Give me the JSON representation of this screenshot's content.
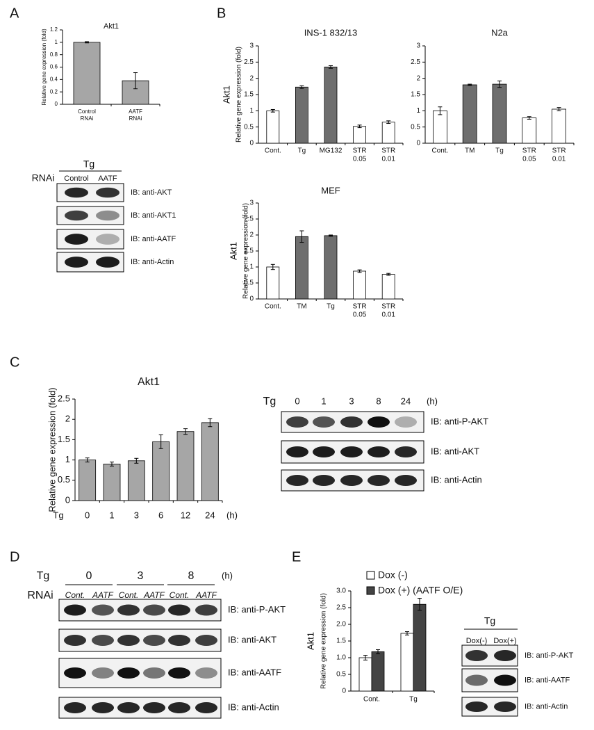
{
  "panel_labels": [
    "A",
    "B",
    "C",
    "D",
    "E"
  ],
  "chart_data": [
    {
      "type": "bar",
      "title": "Akt1",
      "ylabel": [
        "Relative gene expression (fold)"
      ],
      "categories": [
        [
          "Control",
          "RNAi"
        ],
        [
          "AATF",
          "RNAi"
        ]
      ],
      "values": [
        1.0,
        0.38
      ],
      "errors": [
        0.01,
        0.13
      ],
      "colors": [
        "#a6a6a6",
        "#a6a6a6"
      ],
      "ylim": [
        0,
        1.2
      ],
      "yticks": [
        0,
        0.2,
        0.4,
        0.6,
        0.8,
        1,
        1.2
      ]
    },
    {
      "type": "bar",
      "title": "INS-1 832/13",
      "ylabel": [
        "Akt1",
        "Relative gene expression (fold)"
      ],
      "categories": [
        [
          "Cont."
        ],
        [
          "Tg"
        ],
        [
          "MG132"
        ],
        [
          "STR",
          "0.05"
        ],
        [
          "STR",
          "0.01"
        ]
      ],
      "values": [
        1.0,
        1.73,
        2.35,
        0.52,
        0.65
      ],
      "errors": [
        0.04,
        0.04,
        0.04,
        0.04,
        0.04
      ],
      "colors": [
        "#ffffff",
        "#6e6e6e",
        "#6e6e6e",
        "#ffffff",
        "#ffffff"
      ],
      "ylim": [
        0,
        3
      ],
      "yticks": [
        0,
        0.5,
        1,
        1.5,
        2,
        2.5,
        3
      ]
    },
    {
      "type": "bar",
      "title": "N2a",
      "categories": [
        [
          "Cont."
        ],
        [
          "TM"
        ],
        [
          "Tg"
        ],
        [
          "STR",
          "0.05"
        ],
        [
          "STR",
          "0.01"
        ]
      ],
      "values": [
        1.0,
        1.8,
        1.82,
        0.78,
        1.05
      ],
      "errors": [
        0.12,
        0.02,
        0.1,
        0.04,
        0.05
      ],
      "colors": [
        "#ffffff",
        "#6e6e6e",
        "#6e6e6e",
        "#ffffff",
        "#ffffff"
      ],
      "ylim": [
        0,
        3
      ],
      "yticks": [
        0,
        0.5,
        1,
        1.5,
        2,
        2.5,
        3
      ]
    },
    {
      "type": "bar",
      "title": "MEF",
      "ylabel": [
        "Akt1",
        "Relative gene expression (fold)"
      ],
      "categories": [
        [
          "Cont."
        ],
        [
          "TM"
        ],
        [
          "Tg"
        ],
        [
          "STR",
          "0.05"
        ],
        [
          "STR",
          "0.01"
        ]
      ],
      "values": [
        1.0,
        1.95,
        1.98,
        0.87,
        0.77
      ],
      "errors": [
        0.08,
        0.18,
        0.02,
        0.04,
        0.03
      ],
      "colors": [
        "#ffffff",
        "#6e6e6e",
        "#6e6e6e",
        "#ffffff",
        "#ffffff"
      ],
      "ylim": [
        0,
        3
      ],
      "yticks": [
        0,
        0.5,
        1,
        1.5,
        2,
        2.5,
        3
      ]
    },
    {
      "type": "bar",
      "title": "Akt1",
      "ylabel": [
        "Relative gene expression (fold)"
      ],
      "x_prefix": "Tg",
      "x_unit": "(h)",
      "categories": [
        [
          "0"
        ],
        [
          "1"
        ],
        [
          "3"
        ],
        [
          "6"
        ],
        [
          "12"
        ],
        [
          "24"
        ]
      ],
      "values": [
        1.0,
        0.9,
        0.98,
        1.45,
        1.7,
        1.92
      ],
      "errors": [
        0.05,
        0.05,
        0.06,
        0.17,
        0.07,
        0.1
      ],
      "colors": [
        "#a6a6a6",
        "#a6a6a6",
        "#a6a6a6",
        "#a6a6a6",
        "#a6a6a6",
        "#a6a6a6"
      ],
      "ylim": [
        0,
        2.5
      ],
      "yticks": [
        0,
        0.5,
        1,
        1.5,
        2,
        2.5
      ]
    },
    {
      "type": "grouped_bar",
      "ylabel": [
        "Akt1",
        "Relative gene expression (fold)"
      ],
      "categories": [
        [
          "Cont."
        ],
        [
          "Tg"
        ]
      ],
      "series": [
        {
          "name": "Dox (-)",
          "color": "#ffffff",
          "values": [
            1.0,
            1.73
          ],
          "errors": [
            0.07,
            0.05
          ]
        },
        {
          "name": "Dox (+) (AATF O/E)",
          "color": "#444444",
          "values": [
            1.18,
            2.6
          ],
          "errors": [
            0.06,
            0.18
          ]
        }
      ],
      "ylim": [
        0,
        3.0
      ],
      "yticks": [
        0,
        0.5,
        {
          "value": 1.0,
          "label": "1.0"
        },
        1.5,
        {
          "value": 2.0,
          "label": "2.0"
        },
        2.5,
        {
          "value": 3.0,
          "label": "3.0"
        }
      ]
    }
  ],
  "blots": [
    {
      "treatment": "Tg",
      "rnai": "RNAi",
      "lanes": [
        "Control",
        "AATF"
      ],
      "rows": [
        "IB: anti-AKT",
        "IB: anti-AKT1",
        "IB: anti-AATF",
        "IB: anti-Actin"
      ]
    },
    {
      "treatment": "Tg",
      "lanes": [
        "0",
        "1",
        "3",
        "8",
        "24"
      ],
      "unit": "(h)",
      "rows": [
        "IB: anti-P-AKT",
        "IB: anti-AKT",
        "IB: anti-Actin"
      ]
    },
    {
      "treatment": "Tg",
      "rnai": "RNAi",
      "groups": [
        "0",
        "3",
        "8"
      ],
      "unit": "(h)",
      "lanes": [
        "Cont.",
        "AATF",
        "Cont.",
        "AATF",
        "Cont.",
        "AATF"
      ],
      "rows": [
        "IB: anti-P-AKT",
        "IB: anti-AKT",
        "IB: anti-AATF",
        "IB: anti-Actin"
      ]
    },
    {
      "treatment": "Tg",
      "lanes": [
        "Dox(-)",
        "Dox(+)"
      ],
      "rows": [
        "IB: anti-P-AKT",
        "IB: anti-AATF",
        "IB: anti-Actin"
      ]
    }
  ]
}
